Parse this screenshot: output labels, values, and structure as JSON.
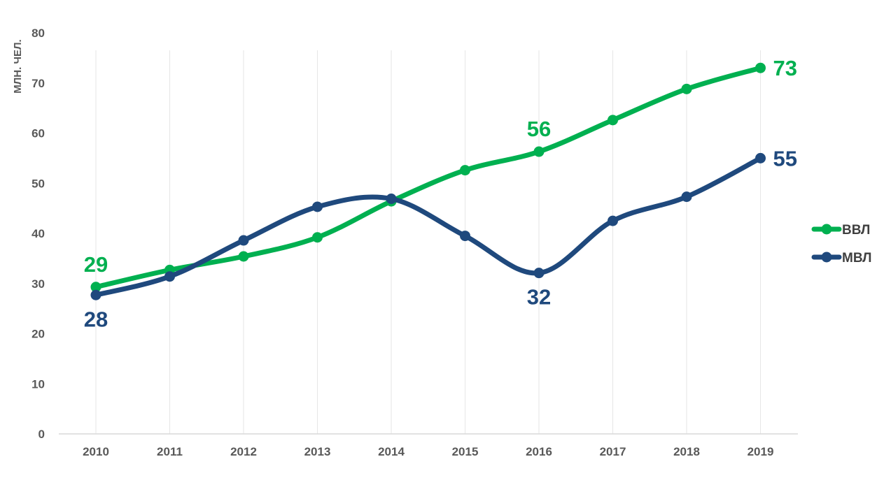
{
  "chart_data": {
    "type": "line",
    "title": "",
    "xlabel": "",
    "ylabel": "МЛН. ЧЕЛ.",
    "ylim": [
      0,
      80
    ],
    "yticks": [
      0,
      10,
      20,
      30,
      40,
      50,
      60,
      70,
      80
    ],
    "categories": [
      "2010",
      "2011",
      "2012",
      "2013",
      "2014",
      "2015",
      "2016",
      "2017",
      "2018",
      "2019"
    ],
    "grid": "vertical",
    "smooth": true,
    "legend_position": "right",
    "series": [
      {
        "name": "ВВЛ",
        "color": "#00B050",
        "values": [
          29.3,
          32.7,
          35.4,
          39.2,
          46.4,
          52.6,
          56.3,
          62.6,
          68.8,
          73.0
        ],
        "data_labels": [
          {
            "index": 0,
            "text": "29"
          },
          {
            "index": 6,
            "text": "56"
          },
          {
            "index": 9,
            "text": "73"
          }
        ]
      },
      {
        "name": "МВЛ",
        "color": "#1F497D",
        "values": [
          27.7,
          31.4,
          38.6,
          45.3,
          46.9,
          39.5,
          32.1,
          42.5,
          47.3,
          55.0
        ],
        "data_labels": [
          {
            "index": 0,
            "text": "28"
          },
          {
            "index": 6,
            "text": "32"
          },
          {
            "index": 9,
            "text": "55"
          }
        ]
      }
    ]
  }
}
